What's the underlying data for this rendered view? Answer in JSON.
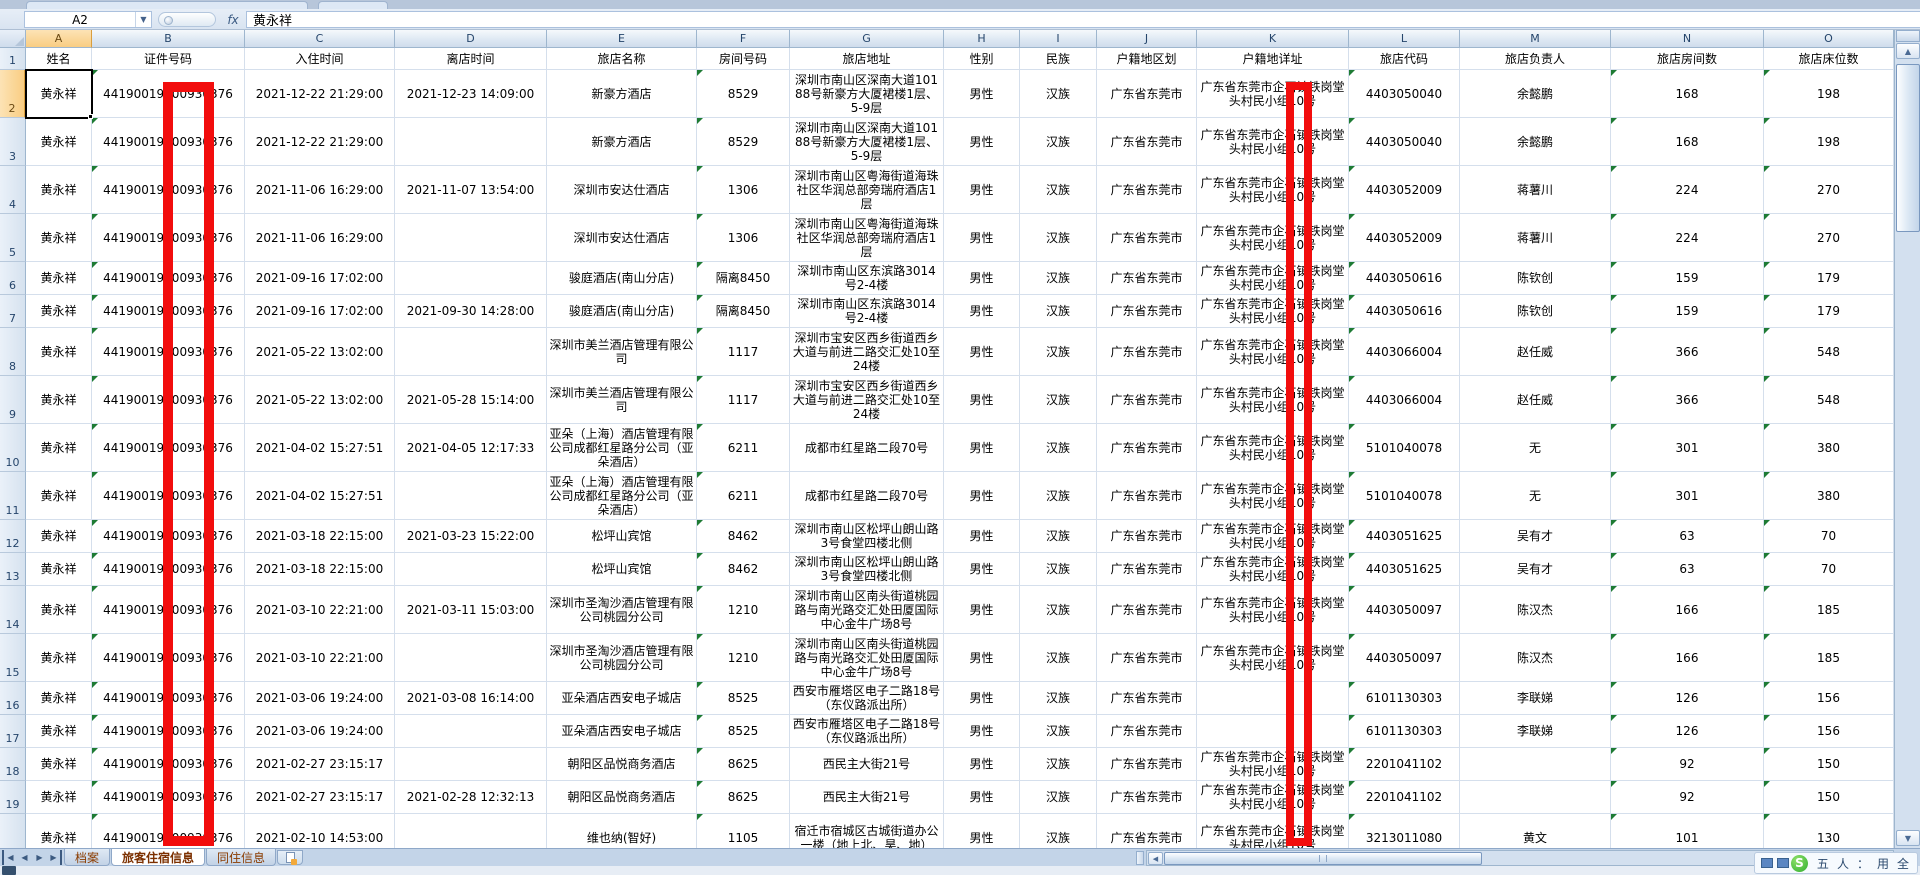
{
  "formula_bar": {
    "name_box": "A2",
    "fx_label": "fx",
    "formula": "黄永祥"
  },
  "columns": [
    "A",
    "B",
    "C",
    "D",
    "E",
    "F",
    "G",
    "H",
    "I",
    "J",
    "K",
    "L",
    "M",
    "N",
    "O"
  ],
  "grid": {
    "headers": [
      "姓名",
      "证件号码",
      "入住时间",
      "离店时间",
      "旅店名称",
      "房间号码",
      "旅店地址",
      "性别",
      "民族",
      "户籍地区划",
      "户籍地详址",
      "旅店代码",
      "旅店负责人",
      "旅店房间数",
      "旅店床位数"
    ],
    "rows": [
      [
        "黄永祥",
        "44190019900930376",
        "2021-12-22 21:29:00",
        "2021-12-23 14:09:00",
        "新豪方酒店",
        "8529",
        "深圳市南山区深南大道10188号新豪方大厦裙楼1层、5-9层",
        "男性",
        "汉族",
        "广东省东莞市",
        "广东省东莞市企石镇铁岗堂头村民小组10号",
        "4403050040",
        "余懿鹏",
        "168",
        "198"
      ],
      [
        "黄永祥",
        "44190019900930376",
        "2021-12-22 21:29:00",
        "",
        "新豪方酒店",
        "8529",
        "深圳市南山区深南大道10188号新豪方大厦裙楼1层、5-9层",
        "男性",
        "汉族",
        "广东省东莞市",
        "广东省东莞市企石镇铁岗堂头村民小组10号",
        "4403050040",
        "余懿鹏",
        "168",
        "198"
      ],
      [
        "黄永祥",
        "44190019900930376",
        "2021-11-06 16:29:00",
        "2021-11-07 13:54:00",
        "深圳市安达仕酒店",
        "1306",
        "深圳市南山区粤海街道海珠社区华润总部旁瑞府酒店1层",
        "男性",
        "汉族",
        "广东省东莞市",
        "广东省东莞市企石镇铁岗堂头村民小组10号",
        "4403052009",
        "蒋薯川",
        "224",
        "270"
      ],
      [
        "黄永祥",
        "44190019900930376",
        "2021-11-06 16:29:00",
        "",
        "深圳市安达仕酒店",
        "1306",
        "深圳市南山区粤海街道海珠社区华润总部旁瑞府酒店1层",
        "男性",
        "汉族",
        "广东省东莞市",
        "广东省东莞市企石镇铁岗堂头村民小组10号",
        "4403052009",
        "蒋薯川",
        "224",
        "270"
      ],
      [
        "黄永祥",
        "44190019900930376",
        "2021-09-16 17:02:00",
        "",
        "骏庭酒店(南山分店)",
        "隔离8450",
        "深圳市南山区东滨路3014号2-4楼",
        "男性",
        "汉族",
        "广东省东莞市",
        "广东省东莞市企石镇铁岗堂头村民小组10号",
        "4403050616",
        "陈钦创",
        "159",
        "179"
      ],
      [
        "黄永祥",
        "44190019900930376",
        "2021-09-16 17:02:00",
        "2021-09-30 14:28:00",
        "骏庭酒店(南山分店)",
        "隔离8450",
        "深圳市南山区东滨路3014号2-4楼",
        "男性",
        "汉族",
        "广东省东莞市",
        "广东省东莞市企石镇铁岗堂头村民小组10号",
        "4403050616",
        "陈钦创",
        "159",
        "179"
      ],
      [
        "黄永祥",
        "44190019900930376",
        "2021-05-22 13:02:00",
        "",
        "深圳市美兰酒店管理有限公司",
        "1117",
        "深圳市宝安区西乡街道西乡大道与前进二路交汇处10至24楼",
        "男性",
        "汉族",
        "广东省东莞市",
        "广东省东莞市企石镇铁岗堂头村民小组10号",
        "4403066004",
        "赵任威",
        "366",
        "548"
      ],
      [
        "黄永祥",
        "44190019900930376",
        "2021-05-22 13:02:00",
        "2021-05-28 15:14:00",
        "深圳市美兰酒店管理有限公司",
        "1117",
        "深圳市宝安区西乡街道西乡大道与前进二路交汇处10至24楼",
        "男性",
        "汉族",
        "广东省东莞市",
        "广东省东莞市企石镇铁岗堂头村民小组10号",
        "4403066004",
        "赵任威",
        "366",
        "548"
      ],
      [
        "黄永祥",
        "44190019900930376",
        "2021-04-02 15:27:51",
        "2021-04-05 12:17:33",
        "亚朵（上海）酒店管理有限公司成都红星路分公司（亚朵酒店）",
        "6211",
        "成都市红星路二段70号",
        "男性",
        "汉族",
        "广东省东莞市",
        "广东省东莞市企石镇铁岗堂头村民小组10号",
        "5101040078",
        "无",
        "301",
        "380"
      ],
      [
        "黄永祥",
        "44190019900930376",
        "2021-04-02 15:27:51",
        "",
        "亚朵（上海）酒店管理有限公司成都红星路分公司（亚朵酒店）",
        "6211",
        "成都市红星路二段70号",
        "男性",
        "汉族",
        "广东省东莞市",
        "广东省东莞市企石镇铁岗堂头村民小组10号",
        "5101040078",
        "无",
        "301",
        "380"
      ],
      [
        "黄永祥",
        "44190019900930376",
        "2021-03-18 22:15:00",
        "2021-03-23 15:22:00",
        "松坪山宾馆",
        "8462",
        "深圳市南山区松坪山朗山路3号食堂四楼北侧",
        "男性",
        "汉族",
        "广东省东莞市",
        "广东省东莞市企石镇铁岗堂头村民小组10号",
        "4403051625",
        "吴有才",
        "63",
        "70"
      ],
      [
        "黄永祥",
        "44190019900930376",
        "2021-03-18 22:15:00",
        "",
        "松坪山宾馆",
        "8462",
        "深圳市南山区松坪山朗山路3号食堂四楼北侧",
        "男性",
        "汉族",
        "广东省东莞市",
        "广东省东莞市企石镇铁岗堂头村民小组10号",
        "4403051625",
        "吴有才",
        "63",
        "70"
      ],
      [
        "黄永祥",
        "44190019900930376",
        "2021-03-10 22:21:00",
        "2021-03-11 15:03:00",
        "深圳市圣淘沙酒店管理有限公司桃园分公司",
        "1210",
        "深圳市南山区南头街道桃园路与南光路交汇处田厦国际中心金牛广场8号",
        "男性",
        "汉族",
        "广东省东莞市",
        "广东省东莞市企石镇铁岗堂头村民小组10号",
        "4403050097",
        "陈汉杰",
        "166",
        "185"
      ],
      [
        "黄永祥",
        "44190019900930376",
        "2021-03-10 22:21:00",
        "",
        "深圳市圣淘沙酒店管理有限公司桃园分公司",
        "1210",
        "深圳市南山区南头街道桃园路与南光路交汇处田厦国际中心金牛广场8号",
        "男性",
        "汉族",
        "广东省东莞市",
        "广东省东莞市企石镇铁岗堂头村民小组10号",
        "4403050097",
        "陈汉杰",
        "166",
        "185"
      ],
      [
        "黄永祥",
        "44190019900930376",
        "2021-03-06 19:24:00",
        "2021-03-08 16:14:00",
        "亚朵酒店西安电子城店",
        "8525",
        "西安市雁塔区电子二路18号（东仪路派出所）",
        "男性",
        "汉族",
        "广东省东莞市",
        "",
        "6101130303",
        "李联娣",
        "126",
        "156"
      ],
      [
        "黄永祥",
        "44190019900930376",
        "2021-03-06 19:24:00",
        "",
        "亚朵酒店西安电子城店",
        "8525",
        "西安市雁塔区电子二路18号（东仪路派出所）",
        "男性",
        "汉族",
        "广东省东莞市",
        "",
        "6101130303",
        "李联娣",
        "126",
        "156"
      ],
      [
        "黄永祥",
        "44190019900930376",
        "2021-02-27 23:15:17",
        "",
        "朝阳区品悦商务酒店",
        "8625",
        "西民主大街21号",
        "男性",
        "汉族",
        "广东省东莞市",
        "广东省东莞市企石镇铁岗堂头村民小组10号",
        "2201041102",
        "",
        "92",
        "150"
      ],
      [
        "黄永祥",
        "44190019900930376",
        "2021-02-27 23:15:17",
        "2021-02-28 12:32:13",
        "朝阳区品悦商务酒店",
        "8625",
        "西民主大街21号",
        "男性",
        "汉族",
        "广东省东莞市",
        "广东省东莞市企石镇铁岗堂头村民小组10号",
        "2201041102",
        "",
        "92",
        "150"
      ],
      [
        "黄永祥",
        "44190019900930376",
        "2021-02-10 14:53:00",
        "",
        "维也纳(智好)",
        "1105",
        "宿迁市宿城区古城街道办公一楼（地上北、昊、地）",
        "男性",
        "汉族",
        "广东省东莞市",
        "广东省东莞市企石镇铁岗堂头村民小组10号",
        "3213011080",
        "黄文",
        "101",
        "130"
      ]
    ]
  },
  "selection": {
    "cell": "A2",
    "row": "2",
    "column": "A"
  },
  "sheet_tabs": {
    "tabs": [
      "档案",
      "旅客住宿信息",
      "同住信息"
    ],
    "active": "旅客住宿信息"
  },
  "annotations": {
    "redaction_color": "#F20D0D",
    "redacted_columns": [
      "证件号码",
      "户籍地详址"
    ]
  },
  "colors": {
    "selected_header": "#F9CD82",
    "grid_line": "#D5DFEC",
    "flag_green": "#1E7B34",
    "tab_text": "#8A3C00"
  },
  "taskbar": {
    "ime_logo": "S",
    "ime_items": [
      "五",
      "人",
      "：",
      "用",
      "全"
    ]
  }
}
